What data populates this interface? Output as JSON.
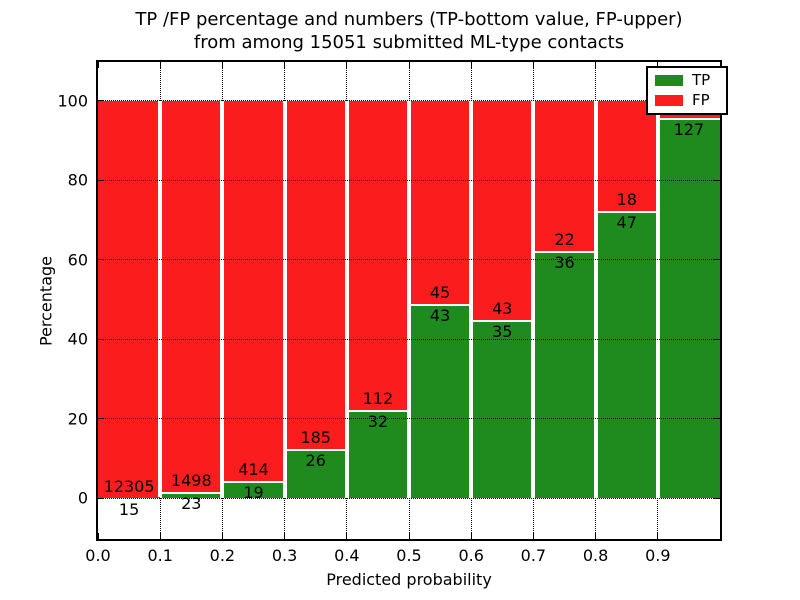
{
  "title": {
    "line1": "TP /FP percentage and numbers (TP-bottom value, FP-upper)",
    "line2": "from among 15051 submitted ML-type contacts"
  },
  "axes": {
    "x_label": "Predicted probability",
    "y_label": "Percentage"
  },
  "colors": {
    "tp_green": "#1f8b1f",
    "fp_red": "#fb1d1d",
    "axis_black": "#000000",
    "background": "#ffffff"
  },
  "chart_data": {
    "type": "bar",
    "stacked": true,
    "normalized_to_100_percent": true,
    "title": "TP /FP percentage and numbers (TP-bottom value, FP-upper) from among 15051 submitted ML-type contacts",
    "xlabel": "Predicted probability",
    "ylabel": "Percentage",
    "xlim": [
      0.0,
      1.0
    ],
    "ylim": [
      -10.5,
      110
    ],
    "grid": true,
    "grid_style": "dotted",
    "legend_position": "upper right",
    "x_tick_labels": [
      "0.0",
      "0.1",
      "0.2",
      "0.3",
      "0.4",
      "0.5",
      "0.6",
      "0.7",
      "0.8",
      "0.9"
    ],
    "x_tick_positions": [
      0.0,
      0.1,
      0.2,
      0.3,
      0.4,
      0.5,
      0.6,
      0.7,
      0.8,
      0.9
    ],
    "y_tick_labels": [
      "0",
      "20",
      "40",
      "60",
      "80",
      "100"
    ],
    "y_tick_values": [
      0,
      20,
      40,
      60,
      80,
      100
    ],
    "series": [
      {
        "name": "TP",
        "color": "#1f8b1f"
      },
      {
        "name": "FP",
        "color": "#fb1d1d"
      }
    ],
    "bins": [
      {
        "x_range": [
          0.0,
          0.1
        ],
        "tp": 15,
        "fp": 12305,
        "tp_pct": 0.12,
        "fp_pct": 99.88,
        "fp_label_visible": true
      },
      {
        "x_range": [
          0.1,
          0.2
        ],
        "tp": 23,
        "fp": 1498,
        "tp_pct": 1.51,
        "fp_pct": 98.49,
        "fp_label_visible": true
      },
      {
        "x_range": [
          0.2,
          0.3
        ],
        "tp": 19,
        "fp": 414,
        "tp_pct": 4.39,
        "fp_pct": 95.61,
        "fp_label_visible": true
      },
      {
        "x_range": [
          0.3,
          0.4
        ],
        "tp": 26,
        "fp": 185,
        "tp_pct": 12.32,
        "fp_pct": 87.68,
        "fp_label_visible": true
      },
      {
        "x_range": [
          0.4,
          0.5
        ],
        "tp": 32,
        "fp": 112,
        "tp_pct": 22.22,
        "fp_pct": 77.78,
        "fp_label_visible": true
      },
      {
        "x_range": [
          0.5,
          0.6
        ],
        "tp": 43,
        "fp": 45,
        "tp_pct": 48.86,
        "fp_pct": 51.14,
        "fp_label_visible": true
      },
      {
        "x_range": [
          0.6,
          0.7
        ],
        "tp": 35,
        "fp": 43,
        "tp_pct": 44.87,
        "fp_pct": 55.13,
        "fp_label_visible": true
      },
      {
        "x_range": [
          0.7,
          0.8
        ],
        "tp": 36,
        "fp": 22,
        "tp_pct": 62.07,
        "fp_pct": 37.93,
        "fp_label_visible": true
      },
      {
        "x_range": [
          0.8,
          0.9
        ],
        "tp": 47,
        "fp": 18,
        "tp_pct": 72.31,
        "fp_pct": 27.69,
        "fp_label_visible": true
      },
      {
        "x_range": [
          0.9,
          1.0
        ],
        "tp": 127,
        "fp": null,
        "tp_pct": 95.5,
        "fp_pct": 4.5,
        "fp_label_visible": false
      }
    ]
  }
}
